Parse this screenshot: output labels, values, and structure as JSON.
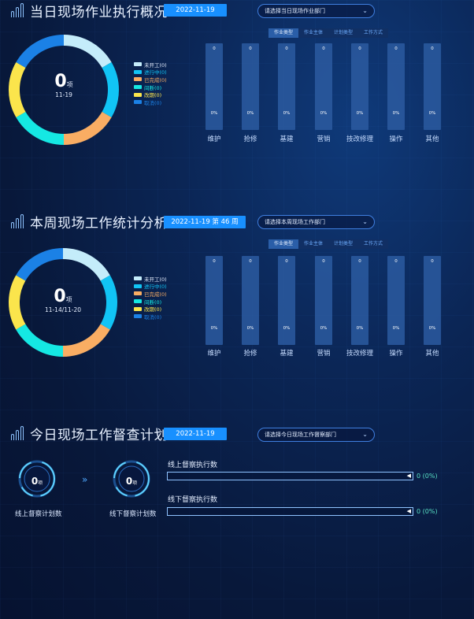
{
  "colors": {
    "not_started": "#c4ecfa",
    "in_progress": "#11c4f5",
    "completed": "#f9ad63",
    "interrupted": "#15e8e3",
    "rescheduled": "#fbe54c",
    "cancelled": "#1b81e6",
    "accent": "#1890ff"
  },
  "daily": {
    "title": "当日现场作业执行概况",
    "date": "2022-11-19",
    "dept_placeholder": "请选择当日现场作业部门",
    "tabs": [
      "作业类型",
      "作业主体",
      "计划类型",
      "工作方式"
    ],
    "active_tab": 0,
    "total": "0",
    "unit": "项",
    "center_date": "11-19",
    "legend": [
      "未开工(0)",
      "进行中(0)",
      "已完成(0)",
      "间断(0)",
      "改期(0)",
      "取消(0)"
    ],
    "bars": [
      {
        "label": "维护",
        "top": "0",
        "pct": "0%"
      },
      {
        "label": "抢修",
        "top": "0",
        "pct": "0%"
      },
      {
        "label": "基建",
        "top": "0",
        "pct": "0%"
      },
      {
        "label": "营销",
        "top": "0",
        "pct": "0%"
      },
      {
        "label": "技改修理",
        "top": "0",
        "pct": "0%"
      },
      {
        "label": "操作",
        "top": "0",
        "pct": "0%"
      },
      {
        "label": "其他",
        "top": "0",
        "pct": "0%"
      }
    ]
  },
  "weekly": {
    "title": "本周现场工作统计分析",
    "date": "2022-11-19 第 46 周",
    "dept_placeholder": "请选择本周现场工作部门",
    "tabs": [
      "作业类型",
      "作业主体",
      "计划类型",
      "工作方式"
    ],
    "active_tab": 0,
    "total": "0",
    "unit": "项",
    "center_date": "11-14/11-20",
    "legend": [
      "未开工(0)",
      "进行中(0)",
      "已完成(0)",
      "间断(0)",
      "改期(0)",
      "取消(0)"
    ],
    "bars": [
      {
        "label": "维护",
        "top": "0",
        "pct": "0%"
      },
      {
        "label": "抢修",
        "top": "0",
        "pct": "0%"
      },
      {
        "label": "基建",
        "top": "0",
        "pct": "0%"
      },
      {
        "label": "营销",
        "top": "0",
        "pct": "0%"
      },
      {
        "label": "技改修理",
        "top": "0",
        "pct": "0%"
      },
      {
        "label": "操作",
        "top": "0",
        "pct": "0%"
      },
      {
        "label": "其他",
        "top": "0",
        "pct": "0%"
      }
    ]
  },
  "supervision": {
    "title": "今日现场工作督查计划",
    "date": "2022-11-19",
    "dept_placeholder": "请选择今日现场工作督察部门",
    "online_count": "0",
    "offline_count": "0",
    "unit": "项",
    "online_label": "线上督察计划数",
    "offline_label": "线下督察计划数",
    "online_exec_label": "线上督察执行数",
    "offline_exec_label": "线下督察执行数",
    "online_exec_value": "0 (0%)",
    "offline_exec_value": "0 (0%)",
    "online_exec_fraction": 0,
    "offline_exec_fraction": 0
  }
}
